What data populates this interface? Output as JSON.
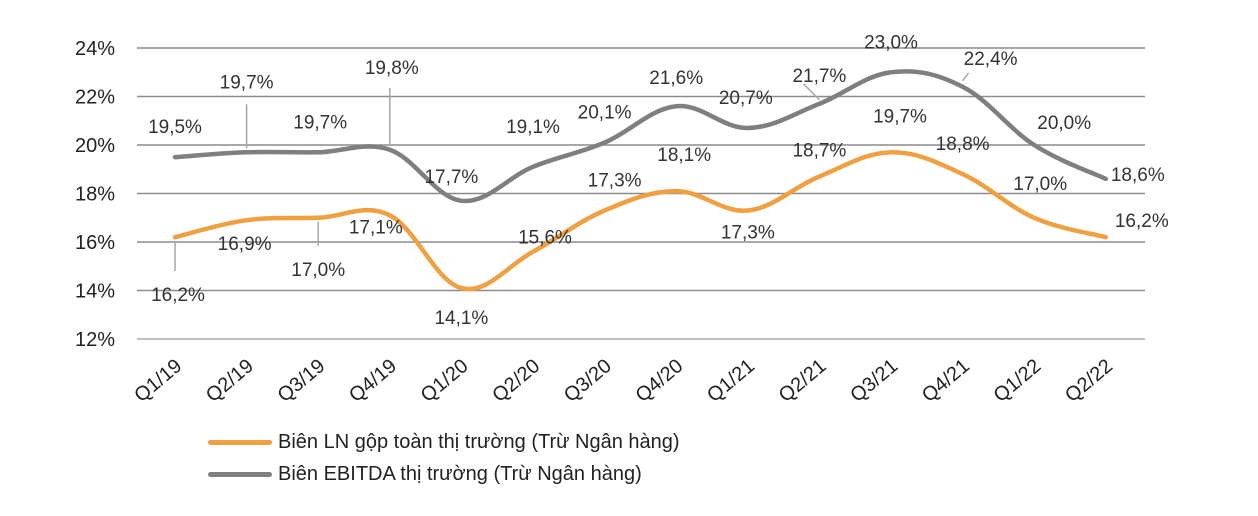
{
  "chart_data": {
    "type": "line",
    "title": "",
    "xlabel": "",
    "ylabel": "",
    "categories": [
      "Q1/19",
      "Q2/19",
      "Q3/19",
      "Q4/19",
      "Q1/20",
      "Q2/20",
      "Q3/20",
      "Q4/20",
      "Q1/21",
      "Q2/21",
      "Q3/21",
      "Q4/21",
      "Q1/22",
      "Q2/22"
    ],
    "ylim": [
      12,
      24
    ],
    "yticks": [
      12,
      14,
      16,
      18,
      20,
      22,
      24
    ],
    "ytick_labels": [
      "12%",
      "14%",
      "16%",
      "18%",
      "20%",
      "22%",
      "24%"
    ],
    "grid": true,
    "legend_position": "bottom-left",
    "series": [
      {
        "name": "Biên LN gộp toàn thị trường (Trừ Ngân hàng)",
        "color": "#F0A040",
        "values": [
          16.2,
          16.9,
          17.0,
          17.1,
          14.1,
          15.6,
          17.3,
          18.1,
          17.3,
          18.7,
          19.7,
          18.8,
          17.0,
          16.2
        ],
        "labels": [
          "16,2%",
          "16,9%",
          "17,0%",
          "17,1%",
          "14,1%",
          "15,6%",
          "17,3%",
          "18,1%",
          "17,3%",
          "18,7%",
          "19,7%",
          "18,8%",
          "17,0%",
          "16,2%"
        ]
      },
      {
        "name": "Biên EBITDA thị trường (Trừ Ngân hàng)",
        "color": "#7F7F7F",
        "values": [
          19.5,
          19.7,
          19.7,
          19.8,
          17.7,
          19.1,
          20.1,
          21.6,
          20.7,
          21.7,
          23.0,
          22.4,
          20.0,
          18.6
        ],
        "labels": [
          "19,5%",
          "19,7%",
          "19,7%",
          "19,8%",
          "17,7%",
          "19,1%",
          "20,1%",
          "21,6%",
          "20,7%",
          "21,7%",
          "23,0%",
          "22,4%",
          "20,0%",
          "18,6%"
        ]
      }
    ]
  }
}
